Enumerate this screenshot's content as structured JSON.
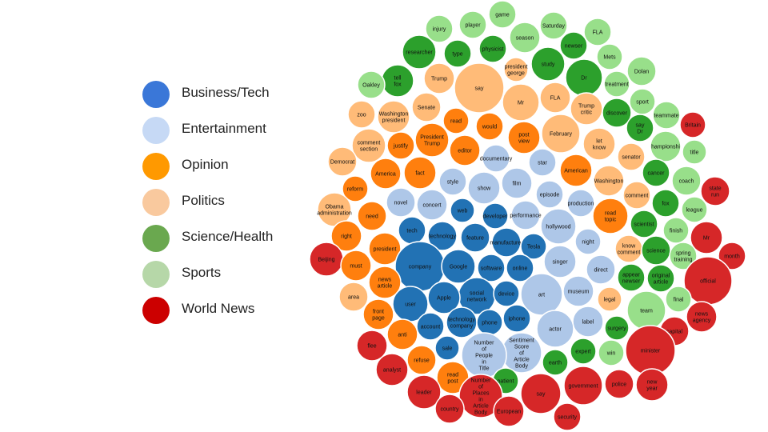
{
  "legend": [
    {
      "label": "Business/Tech",
      "color": "#3a77d8"
    },
    {
      "label": "Entertainment",
      "color": "#c6d9f5"
    },
    {
      "label": "Opinion",
      "color": "#ff9900"
    },
    {
      "label": "Politics",
      "color": "#f9c99e"
    },
    {
      "label": "Science/Health",
      "color": "#6aa84f"
    },
    {
      "label": "Sports",
      "color": "#b6d7a8"
    },
    {
      "label": "World News",
      "color": "#cc0000"
    }
  ],
  "node_colors": {
    "business": "#2272b4",
    "entertainment": "#aec7e8",
    "opinion": "#ff7f0e",
    "politics": "#ffbb78",
    "science": "#2ca02c",
    "sports": "#98df8a",
    "world": "#d62728"
  },
  "bubbles": [
    {
      "label": "game",
      "cat": "sports"
    },
    {
      "label": "injury",
      "cat": "sports"
    },
    {
      "label": "player",
      "cat": "sports"
    },
    {
      "label": "season",
      "cat": "sports"
    },
    {
      "label": "Saturday",
      "cat": "sports"
    },
    {
      "label": "FLA",
      "cat": "sports"
    },
    {
      "label": "researcher",
      "cat": "science"
    },
    {
      "label": "type",
      "cat": "science"
    },
    {
      "label": "physicist",
      "cat": "science"
    },
    {
      "label": "newser",
      "cat": "science"
    },
    {
      "label": "Mets",
      "cat": "sports"
    },
    {
      "label": "president george",
      "cat": "politics"
    },
    {
      "label": "study",
      "cat": "science"
    },
    {
      "label": "Dolan",
      "cat": "sports"
    },
    {
      "label": "tell fox",
      "cat": "science"
    },
    {
      "label": "Trump",
      "cat": "politics"
    },
    {
      "label": "say",
      "cat": "politics"
    },
    {
      "label": "Dr",
      "cat": "science"
    },
    {
      "label": "treatment",
      "cat": "sports"
    },
    {
      "label": "Oakley",
      "cat": "sports"
    },
    {
      "label": "sport",
      "cat": "sports"
    },
    {
      "label": "Mr",
      "cat": "politics"
    },
    {
      "label": "FLA",
      "cat": "politics"
    },
    {
      "label": "Trump critic",
      "cat": "politics"
    },
    {
      "label": "discover",
      "cat": "science"
    },
    {
      "label": "teammate",
      "cat": "sports"
    },
    {
      "label": "zoo",
      "cat": "politics"
    },
    {
      "label": "Washington president",
      "cat": "politics"
    },
    {
      "label": "Senate",
      "cat": "politics"
    },
    {
      "label": "read",
      "cat": "opinion"
    },
    {
      "label": "would",
      "cat": "opinion"
    },
    {
      "label": "Britain",
      "cat": "world"
    },
    {
      "label": "February",
      "cat": "politics"
    },
    {
      "label": "say Dr",
      "cat": "science"
    },
    {
      "label": "post view",
      "cat": "opinion"
    },
    {
      "label": "let know",
      "cat": "politics"
    },
    {
      "label": "comment section",
      "cat": "politics"
    },
    {
      "label": "justify",
      "cat": "opinion"
    },
    {
      "label": "President Trump",
      "cat": "opinion"
    },
    {
      "label": "editor",
      "cat": "opinion"
    },
    {
      "label": "hampionshi",
      "cat": "sports"
    },
    {
      "label": "title",
      "cat": "sports"
    },
    {
      "label": "senator",
      "cat": "politics"
    },
    {
      "label": "Democrat",
      "cat": "politics"
    },
    {
      "label": "documentary",
      "cat": "entertainment"
    },
    {
      "label": "star",
      "cat": "entertainment"
    },
    {
      "label": "America",
      "cat": "opinion"
    },
    {
      "label": "fact",
      "cat": "opinion"
    },
    {
      "label": "American",
      "cat": "opinion"
    },
    {
      "label": "cancer",
      "cat": "science"
    },
    {
      "label": "coach",
      "cat": "sports"
    },
    {
      "label": "reform",
      "cat": "opinion"
    },
    {
      "label": "style",
      "cat": "entertainment"
    },
    {
      "label": "show",
      "cat": "entertainment"
    },
    {
      "label": "film",
      "cat": "entertainment"
    },
    {
      "label": "Washington",
      "cat": "politics"
    },
    {
      "label": "state run",
      "cat": "world"
    },
    {
      "label": "episode",
      "cat": "entertainment"
    },
    {
      "label": "comment",
      "cat": "politics"
    },
    {
      "label": "Obama administration",
      "cat": "politics"
    },
    {
      "label": "novel",
      "cat": "entertainment"
    },
    {
      "label": "concert",
      "cat": "entertainment"
    },
    {
      "label": "production",
      "cat": "entertainment"
    },
    {
      "label": "fox",
      "cat": "science"
    },
    {
      "label": "need",
      "cat": "opinion"
    },
    {
      "label": "web",
      "cat": "business"
    },
    {
      "label": "developer",
      "cat": "business"
    },
    {
      "label": "performance",
      "cat": "entertainment"
    },
    {
      "label": "league",
      "cat": "sports"
    },
    {
      "label": "read topic",
      "cat": "opinion"
    },
    {
      "label": "scientist",
      "cat": "science"
    },
    {
      "label": "tech",
      "cat": "business"
    },
    {
      "label": "hollywood",
      "cat": "entertainment"
    },
    {
      "label": "right",
      "cat": "opinion"
    },
    {
      "label": "technology",
      "cat": "business"
    },
    {
      "label": "finish",
      "cat": "sports"
    },
    {
      "label": "feature",
      "cat": "business"
    },
    {
      "label": "Mr",
      "cat": "world"
    },
    {
      "label": "manufacturer",
      "cat": "business"
    },
    {
      "label": "night",
      "cat": "entertainment"
    },
    {
      "label": "Tesla",
      "cat": "business"
    },
    {
      "label": "president",
      "cat": "opinion"
    },
    {
      "label": "know comment",
      "cat": "politics"
    },
    {
      "label": "science",
      "cat": "science"
    },
    {
      "label": "Beijing",
      "cat": "world"
    },
    {
      "label": "spring training",
      "cat": "sports"
    },
    {
      "label": "month",
      "cat": "world"
    },
    {
      "label": "singer",
      "cat": "entertainment"
    },
    {
      "label": "company",
      "cat": "business"
    },
    {
      "label": "must",
      "cat": "opinion"
    },
    {
      "label": "Google",
      "cat": "business"
    },
    {
      "label": "software",
      "cat": "business"
    },
    {
      "label": "online",
      "cat": "business"
    },
    {
      "label": "direct",
      "cat": "entertainment"
    },
    {
      "label": "appear newser",
      "cat": "science"
    },
    {
      "label": "original article",
      "cat": "science"
    },
    {
      "label": "official",
      "cat": "world"
    },
    {
      "label": "news article",
      "cat": "opinion"
    },
    {
      "label": "museum",
      "cat": "entertainment"
    },
    {
      "label": "social network",
      "cat": "business"
    },
    {
      "label": "device",
      "cat": "business"
    },
    {
      "label": "art",
      "cat": "entertainment"
    },
    {
      "label": "area",
      "cat": "politics"
    },
    {
      "label": "Apple",
      "cat": "business"
    },
    {
      "label": "user",
      "cat": "business"
    },
    {
      "label": "legal",
      "cat": "politics"
    },
    {
      "label": "final",
      "cat": "sports"
    },
    {
      "label": "team",
      "cat": "sports"
    },
    {
      "label": "front page",
      "cat": "opinion"
    },
    {
      "label": "news agency",
      "cat": "world"
    },
    {
      "label": "label",
      "cat": "entertainment"
    },
    {
      "label": "technology company",
      "cat": "business"
    },
    {
      "label": "phone",
      "cat": "business"
    },
    {
      "label": "iphone",
      "cat": "business"
    },
    {
      "label": "account",
      "cat": "business"
    },
    {
      "label": "anti",
      "cat": "opinion"
    },
    {
      "label": "actor",
      "cat": "entertainment"
    },
    {
      "label": "surgery",
      "cat": "science"
    },
    {
      "label": "capital",
      "cat": "world"
    },
    {
      "label": "flee",
      "cat": "world"
    },
    {
      "label": "Sentiment Score of Article Body",
      "cat": "entertainment"
    },
    {
      "label": "sale",
      "cat": "business"
    },
    {
      "label": "Number of People in Title",
      "cat": "entertainment"
    },
    {
      "label": "expert",
      "cat": "science"
    },
    {
      "label": "minister",
      "cat": "world"
    },
    {
      "label": "win",
      "cat": "sports"
    },
    {
      "label": "refuse",
      "cat": "opinion"
    },
    {
      "label": "earth",
      "cat": "science"
    },
    {
      "label": "analyst",
      "cat": "world"
    },
    {
      "label": "read post",
      "cat": "opinion"
    },
    {
      "label": "patient",
      "cat": "science"
    },
    {
      "label": "Number of Places in Article Body",
      "cat": "world"
    },
    {
      "label": "say",
      "cat": "world"
    },
    {
      "label": "government",
      "cat": "world"
    },
    {
      "label": "police",
      "cat": "world"
    },
    {
      "label": "new year",
      "cat": "world"
    },
    {
      "label": "leader",
      "cat": "world"
    },
    {
      "label": "country",
      "cat": "world"
    },
    {
      "label": "European",
      "cat": "world"
    },
    {
      "label": "security",
      "cat": "world"
    }
  ]
}
